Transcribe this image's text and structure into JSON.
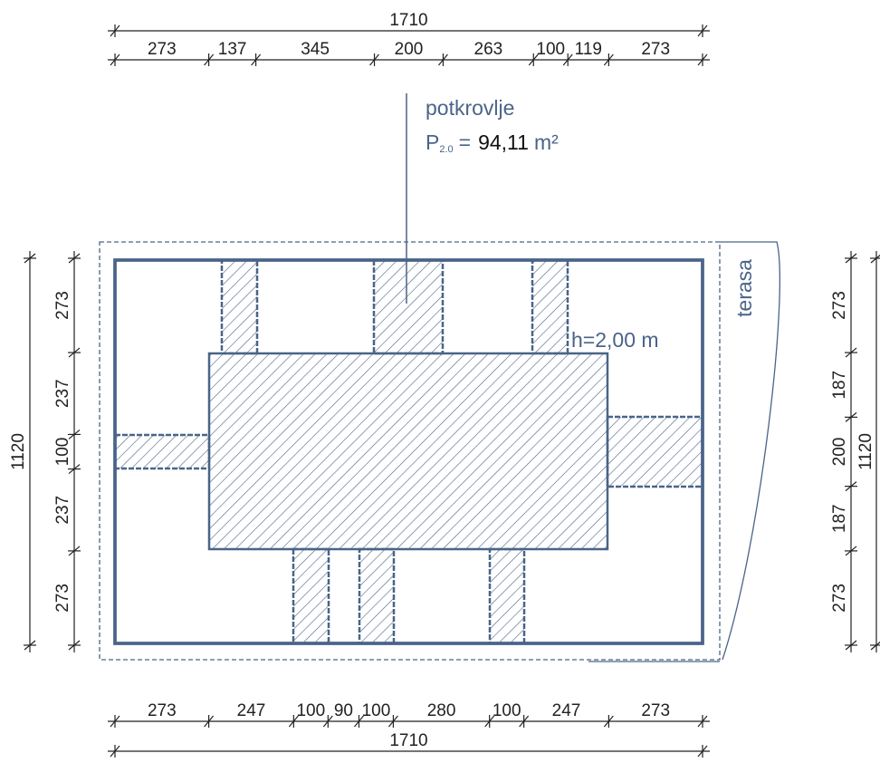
{
  "dimensions": {
    "top": {
      "total": 1710,
      "segments": [
        273,
        137,
        345,
        200,
        263,
        100,
        119,
        273
      ]
    },
    "bottom": {
      "total": 1710,
      "segments": [
        273,
        247,
        100,
        90,
        100,
        280,
        100,
        247,
        273
      ]
    },
    "left": {
      "total": 1120,
      "segments": [
        273,
        237,
        100,
        237,
        273
      ]
    },
    "right": {
      "total": 1120,
      "segments": [
        273,
        187,
        200,
        187,
        273
      ]
    }
  },
  "labels": {
    "name": "potkrovlje",
    "area_symbol": "P",
    "area_subscript": "2.0",
    "equals": "=",
    "area_value": "94,11",
    "area_unit": "m²",
    "height": "h=2,00 m",
    "terrace": "terasa"
  }
}
